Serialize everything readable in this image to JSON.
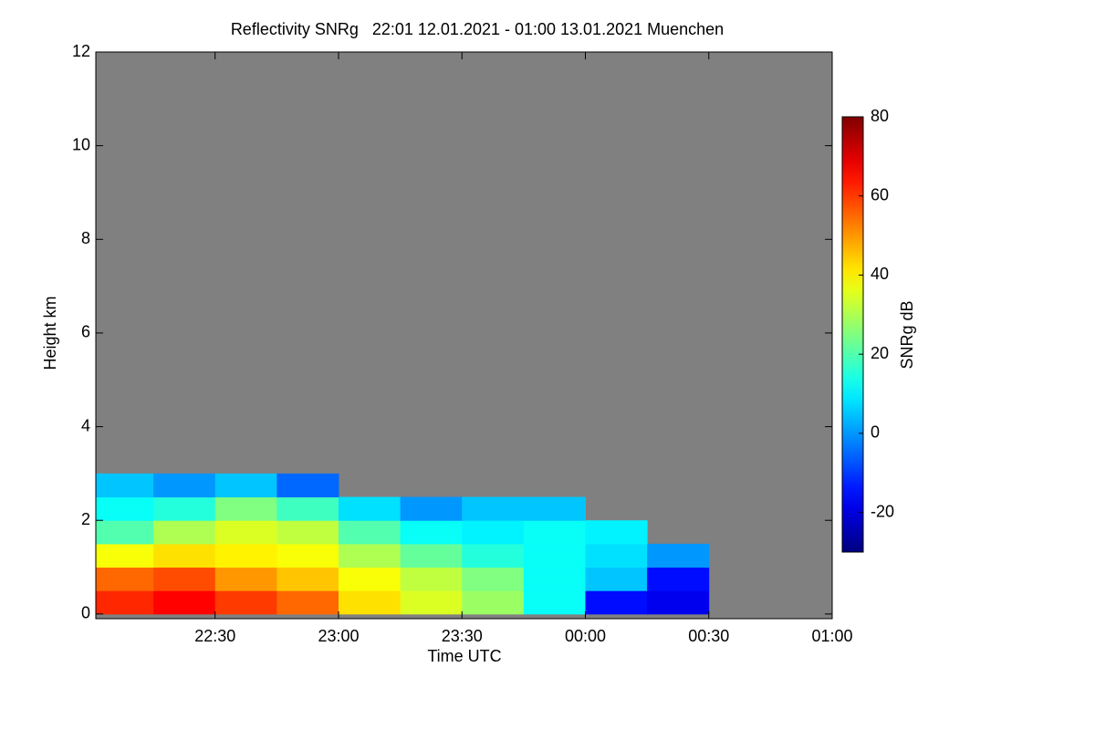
{
  "chart_data": {
    "type": "heatmap",
    "title": "Reflectivity SNRg   22:01 12.01.2021 - 01:00 13.01.2021 Muenchen",
    "x_label": "Time UTC",
    "y_label": "Height km",
    "colorbar_label": "SNRg dB",
    "xlim": [
      1,
      180
    ],
    "xticks": [
      {
        "value": 30,
        "label": "22:30"
      },
      {
        "value": 60,
        "label": "23:00"
      },
      {
        "value": 90,
        "label": "23:30"
      },
      {
        "value": 120,
        "label": "00:00"
      },
      {
        "value": 150,
        "label": "00:30"
      },
      {
        "value": 180,
        "label": "01:00"
      }
    ],
    "ylim": [
      -0.1,
      12
    ],
    "yticks": [
      0,
      2,
      4,
      6,
      8,
      10,
      12
    ],
    "clim": [
      -30,
      80
    ],
    "cticks": [
      -20,
      0,
      20,
      40,
      60,
      80
    ],
    "colormap": "jet",
    "background": "#808080",
    "x_edges": [
      1,
      15,
      30,
      45,
      60,
      75,
      90,
      105,
      120,
      135,
      150,
      165,
      180
    ],
    "y_edges": [
      0,
      0.5,
      1,
      1.5,
      2,
      2.5,
      3
    ],
    "z": [
      [
        62,
        66,
        60,
        55,
        42,
        35,
        28,
        12,
        -15,
        -18,
        null,
        null
      ],
      [
        55,
        58,
        50,
        45,
        38,
        32,
        25,
        12,
        5,
        -15,
        null,
        null
      ],
      [
        38,
        42,
        40,
        38,
        30,
        22,
        15,
        12,
        8,
        0,
        null,
        null
      ],
      [
        20,
        30,
        35,
        32,
        20,
        12,
        10,
        12,
        10,
        null,
        null,
        null
      ],
      [
        12,
        15,
        25,
        18,
        8,
        0,
        5,
        5,
        null,
        null,
        null,
        null
      ],
      [
        5,
        0,
        5,
        -5,
        null,
        null,
        null,
        null,
        null,
        null,
        null,
        null
      ]
    ]
  }
}
